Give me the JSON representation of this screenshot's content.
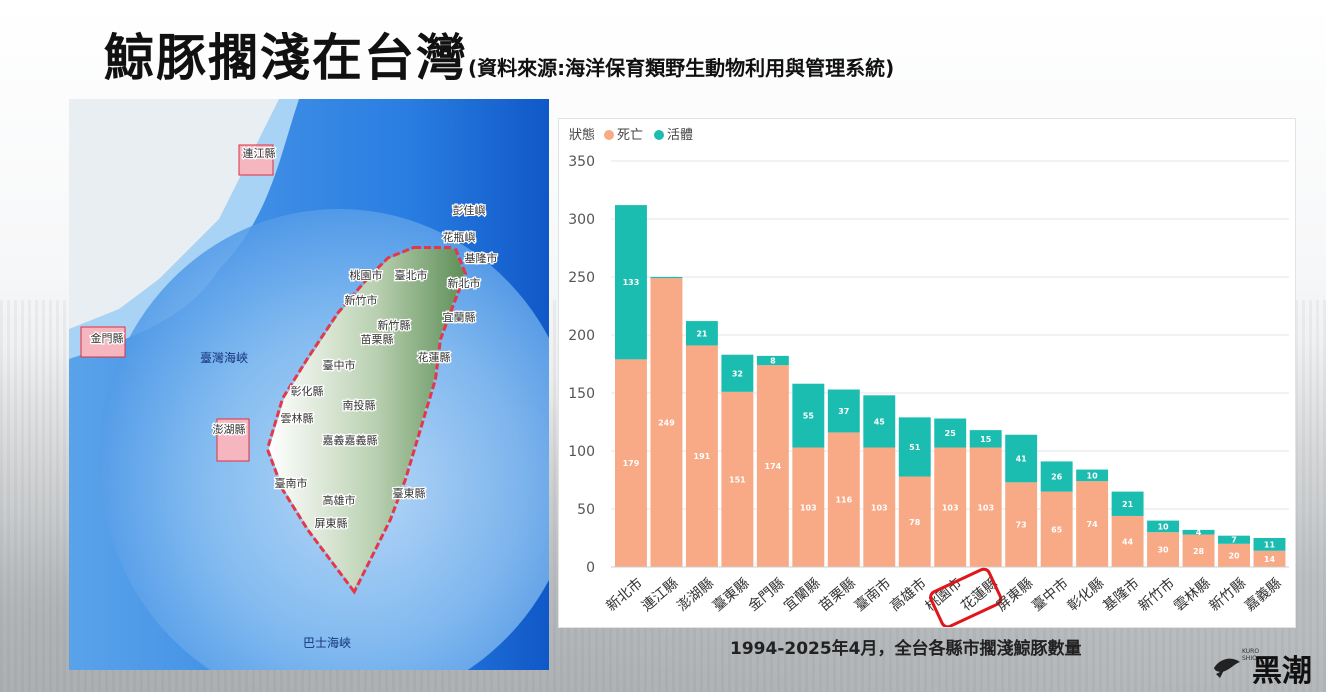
{
  "slide": {
    "title": "鯨豚擱淺在台灣",
    "source_note": "(資料來源:海洋保育類野生動物利用與管理系統)",
    "caption": "1994-2025年4月，全台各縣市擱淺鯨豚數量",
    "logo_text": "黑潮",
    "logo_en": "KURO SHIO"
  },
  "map": {
    "labels": [
      "連江縣",
      "彭佳嶼",
      "花瓶嶼",
      "基隆市",
      "新北市",
      "桃園市",
      "臺北市",
      "新竹市",
      "宜蘭縣",
      "新竹縣",
      "苗栗縣",
      "花蓮縣",
      "臺中市",
      "彰化縣",
      "南投縣",
      "雲林縣",
      "嘉義市",
      "嘉義縣",
      "臺南市",
      "高雄市",
      "臺東縣",
      "屏東縣",
      "金門縣",
      "澎湖縣",
      "臺灣海峽",
      "巴士海峽"
    ],
    "colors": {
      "sea_deep": "#1f6fd6",
      "sea_shallow": "#8fc3f2",
      "land_low": "#ffffff",
      "land_high": "#6e9a66",
      "grid": "#e03040"
    }
  },
  "chart_data": {
    "type": "bar",
    "stacked": true,
    "legend_title": "狀態",
    "legend_position": "top-left",
    "categories": [
      "新北市",
      "連江縣",
      "澎湖縣",
      "臺東縣",
      "金門縣",
      "宜蘭縣",
      "苗栗縣",
      "臺南市",
      "高雄市",
      "桃園市",
      "花蓮縣",
      "屏東縣",
      "臺中市",
      "彰化縣",
      "基隆市",
      "新竹市",
      "雲林縣",
      "新竹縣",
      "嘉義縣"
    ],
    "series": [
      {
        "name": "死亡",
        "color": "#f8a985",
        "values": [
          179,
          249,
          191,
          151,
          174,
          103,
          116,
          103,
          78,
          103,
          103,
          73,
          65,
          74,
          44,
          30,
          28,
          20,
          14
        ]
      },
      {
        "name": "活體",
        "color": "#1cbdb1",
        "values": [
          133,
          1,
          21,
          32,
          8,
          55,
          37,
          45,
          51,
          25,
          15,
          41,
          26,
          10,
          21,
          10,
          4,
          7,
          11
        ]
      }
    ],
    "yaxis": {
      "min": 0,
      "max": 350,
      "ticks": [
        0,
        50,
        100,
        150,
        200,
        250,
        300,
        350
      ]
    },
    "grid": true,
    "highlight_category": "花蓮縣",
    "highlight_color": "#e0161b"
  }
}
